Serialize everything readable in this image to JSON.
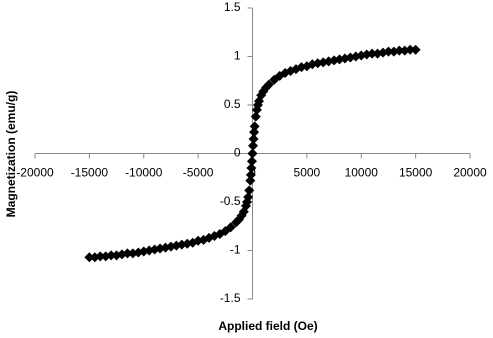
{
  "chart_data": {
    "type": "scatter",
    "x_label": "Applied field (Oe)",
    "y_label": "Magnetization (emu/g)",
    "color": "#000000",
    "x": [
      -15000,
      -14500,
      -14000,
      -13500,
      -13000,
      -12500,
      -12000,
      -11500,
      -11000,
      -10500,
      -10000,
      -9500,
      -9000,
      -8500,
      -8000,
      -7500,
      -7000,
      -6500,
      -6000,
      -5500,
      -5000,
      -4500,
      -4000,
      -3500,
      -3000,
      -2500,
      -2000,
      -1500,
      -1250,
      -1000,
      -800,
      -600,
      -500,
      -400,
      -300,
      -200,
      -150,
      -100,
      -50,
      0,
      50,
      100,
      150,
      200,
      300,
      400,
      500,
      600,
      800,
      1000,
      1250,
      1500,
      2000,
      2500,
      3000,
      3500,
      4000,
      4500,
      5000,
      5500,
      6000,
      6500,
      7000,
      7500,
      8000,
      8500,
      9000,
      9500,
      10000,
      10500,
      11000,
      11500,
      12000,
      12500,
      13000,
      13500,
      14000,
      14500,
      15000
    ],
    "values": [
      -1.07,
      -1.07,
      -1.06,
      -1.06,
      -1.05,
      -1.05,
      -1.04,
      -1.03,
      -1.03,
      -1.02,
      -1.01,
      -1.0,
      -0.99,
      -0.98,
      -0.97,
      -0.96,
      -0.95,
      -0.94,
      -0.93,
      -0.92,
      -0.9,
      -0.89,
      -0.87,
      -0.85,
      -0.83,
      -0.8,
      -0.76,
      -0.71,
      -0.68,
      -0.64,
      -0.6,
      -0.54,
      -0.5,
      -0.45,
      -0.38,
      -0.28,
      -0.22,
      -0.15,
      -0.08,
      0,
      0.08,
      0.15,
      0.22,
      0.28,
      0.38,
      0.45,
      0.5,
      0.54,
      0.6,
      0.64,
      0.68,
      0.71,
      0.76,
      0.8,
      0.83,
      0.85,
      0.87,
      0.89,
      0.9,
      0.92,
      0.93,
      0.94,
      0.95,
      0.96,
      0.97,
      0.98,
      0.99,
      1.0,
      1.01,
      1.02,
      1.03,
      1.03,
      1.04,
      1.05,
      1.05,
      1.06,
      1.06,
      1.07,
      1.07
    ],
    "xlim": [
      -20000,
      20000
    ],
    "ylim": [
      -1.5,
      1.5
    ],
    "xticks": [
      -20000,
      -15000,
      -10000,
      -5000,
      0,
      5000,
      10000,
      15000,
      20000
    ],
    "yticks": [
      -1.5,
      -1,
      -0.5,
      0,
      0.5,
      1,
      1.5
    ],
    "grid": false
  }
}
